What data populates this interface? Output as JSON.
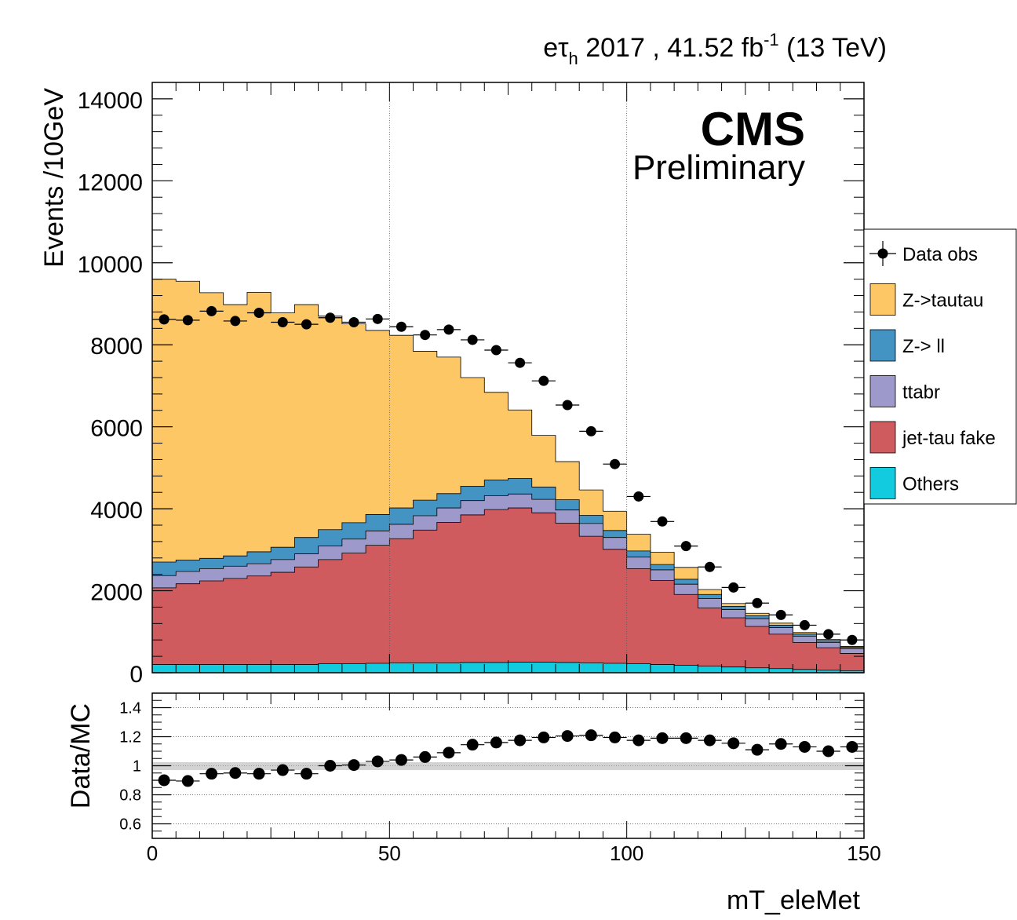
{
  "header": {
    "channel_e": "e",
    "channel_tau": "τ",
    "channel_sub": "h",
    "channel_rest": " 2017 , 41.52 fb",
    "lumi_sup": "-1",
    "energy": " (13 TeV)"
  },
  "cms_label": "CMS",
  "cms_sublabel": "Preliminary",
  "colors": {
    "ztautau": "#fdc765",
    "zll": "#4393c3",
    "ttbar": "#9d9acb",
    "fake": "#d05b5f",
    "others": "#12cbdf",
    "data": "#000000"
  },
  "chart_data": [
    {
      "type": "bar",
      "stacked": true,
      "xlabel": "mT_eleMet",
      "ylabel": "Events /10GeV",
      "xlim": [
        0,
        150
      ],
      "ylim": [
        0,
        14400
      ],
      "yticks": [
        "0",
        "2000",
        "4000",
        "6000",
        "8000",
        "10000",
        "12000",
        "14000"
      ],
      "xticks": [
        "0",
        "50",
        "100",
        "150"
      ],
      "grid_x": [
        50,
        100
      ],
      "bin_edges": [
        0,
        5,
        10,
        15,
        20,
        25,
        30,
        35,
        40,
        45,
        50,
        55,
        60,
        65,
        70,
        75,
        80,
        85,
        90,
        95,
        100,
        105,
        110,
        115,
        120,
        125,
        130,
        135,
        140,
        145,
        150
      ],
      "legend_position": "right",
      "series": [
        {
          "key": "others",
          "name": "Others",
          "values": [
            200,
            200,
            200,
            200,
            200,
            200,
            200,
            220,
            220,
            230,
            240,
            240,
            240,
            250,
            250,
            260,
            260,
            250,
            240,
            230,
            220,
            200,
            180,
            160,
            140,
            120,
            100,
            80,
            60,
            50
          ]
        },
        {
          "key": "fake",
          "name": "jet-tau fake",
          "values": [
            1870,
            1970,
            2040,
            2100,
            2160,
            2250,
            2380,
            2540,
            2700,
            2880,
            3030,
            3240,
            3430,
            3600,
            3730,
            3760,
            3640,
            3400,
            3090,
            2780,
            2320,
            2050,
            1730,
            1420,
            1200,
            1010,
            840,
            660,
            550,
            420
          ]
        },
        {
          "key": "ttbar",
          "name": "ttabr",
          "values": [
            300,
            300,
            300,
            300,
            300,
            310,
            320,
            330,
            340,
            350,
            350,
            350,
            350,
            350,
            340,
            340,
            330,
            320,
            310,
            290,
            280,
            260,
            250,
            230,
            200,
            190,
            160,
            150,
            130,
            120
          ]
        },
        {
          "key": "zll",
          "name": "Z-> ll",
          "values": [
            330,
            280,
            250,
            250,
            290,
            300,
            400,
            400,
            400,
            400,
            400,
            380,
            350,
            350,
            380,
            380,
            300,
            250,
            200,
            170,
            150,
            130,
            120,
            100,
            80,
            70,
            60,
            50,
            40,
            30
          ]
        },
        {
          "key": "ztautau",
          "name": "Z->tautau",
          "values": [
            6900,
            6800,
            6480,
            6130,
            6330,
            5720,
            5680,
            5210,
            4850,
            4490,
            4210,
            3630,
            3330,
            2650,
            2140,
            1670,
            1260,
            930,
            620,
            470,
            410,
            300,
            290,
            120,
            70,
            60,
            50,
            40,
            30,
            20
          ]
        }
      ],
      "data_obs": {
        "name": "Data obs",
        "values": [
          8620,
          8600,
          8820,
          8580,
          8780,
          8550,
          8500,
          8660,
          8550,
          8630,
          8440,
          8240,
          8370,
          8120,
          7870,
          7560,
          7120,
          6530,
          5890,
          5090,
          4300,
          3690,
          3090,
          2580,
          2080,
          1700,
          1410,
          1160,
          940,
          800
        ]
      }
    },
    {
      "type": "scatter",
      "xlabel": "",
      "ylabel": "Data/MC",
      "xlim": [
        0,
        150
      ],
      "ylim": [
        0.5,
        1.5
      ],
      "yticks": [
        "0.6",
        "0.8",
        "1",
        "1.2",
        "1.4"
      ],
      "xticks": [
        "0",
        "50",
        "100",
        "150"
      ],
      "grid_y": [
        0.6,
        0.8,
        1.0,
        1.2,
        1.4
      ],
      "ratio_values": [
        0.9,
        0.895,
        0.945,
        0.95,
        0.945,
        0.97,
        0.945,
        1.0,
        1.005,
        1.03,
        1.04,
        1.06,
        1.09,
        1.145,
        1.16,
        1.175,
        1.195,
        1.205,
        1.21,
        1.195,
        1.175,
        1.19,
        1.19,
        1.175,
        1.155,
        1.11,
        1.15,
        1.13,
        1.1,
        1.13
      ]
    }
  ]
}
